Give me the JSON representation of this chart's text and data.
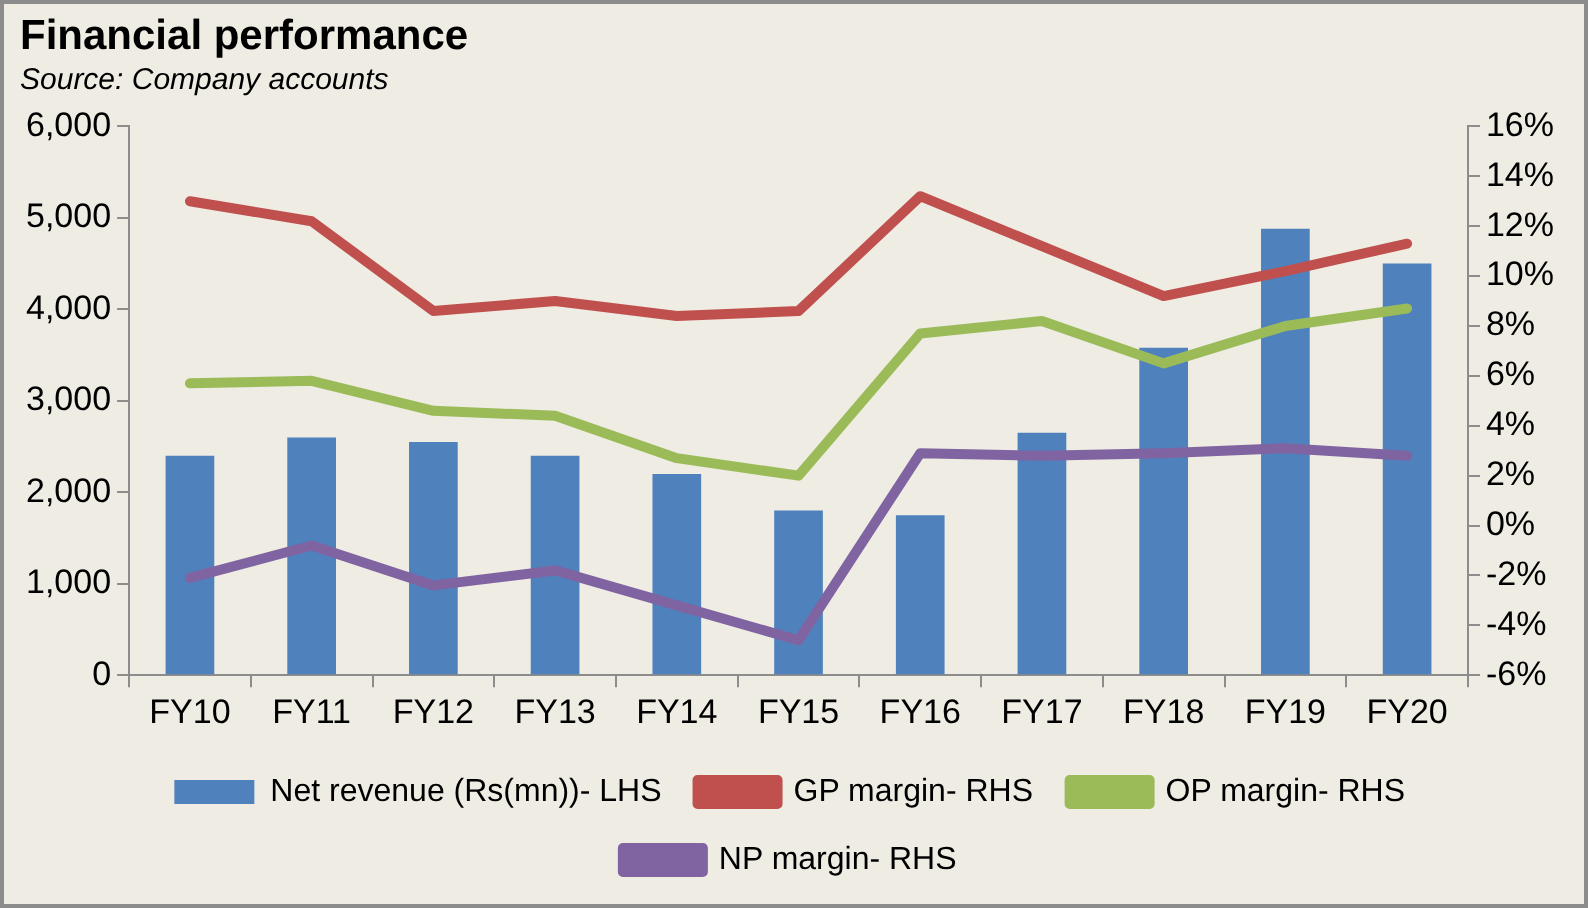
{
  "chart_data": {
    "type": "bar",
    "title": "Financial performance",
    "subtitle": "Source: Company accounts",
    "categories": [
      "FY10",
      "FY11",
      "FY12",
      "FY13",
      "FY14",
      "FY15",
      "FY16",
      "FY17",
      "FY18",
      "FY19",
      "FY20"
    ],
    "series": [
      {
        "name": "Net revenue (Rs(mn))- LHS",
        "color": "#4f81bd",
        "values": [
          2400,
          2600,
          2550,
          2400,
          2200,
          1800,
          1750,
          2650,
          3580,
          4880,
          4500
        ]
      },
      {
        "name": "GP margin- RHS",
        "type": "line",
        "axis": "y2",
        "color": "#c0504d",
        "values": [
          13.0,
          12.2,
          8.6,
          9.0,
          8.4,
          8.6,
          13.2,
          11.2,
          9.2,
          10.2,
          11.3
        ]
      },
      {
        "name": "OP margin- RHS",
        "type": "line",
        "axis": "y2",
        "color": "#9bbb59",
        "values": [
          5.7,
          5.8,
          4.6,
          4.4,
          2.7,
          2.0,
          7.7,
          8.2,
          6.5,
          8.0,
          8.7
        ]
      },
      {
        "name": "NP margin- RHS",
        "type": "line",
        "axis": "y2",
        "color": "#8064a2",
        "values": [
          -2.1,
          -0.8,
          -2.4,
          -1.8,
          -3.2,
          -4.6,
          2.9,
          2.8,
          2.9,
          3.1,
          2.8
        ]
      }
    ],
    "ylim": [
      0,
      6000
    ],
    "yticks": [
      0,
      {
        "value": 1000,
        "label": "1,000"
      },
      {
        "value": 2000,
        "label": "2,000"
      },
      {
        "value": 3000,
        "label": "3,000"
      },
      {
        "value": 4000,
        "label": "4,000"
      },
      {
        "value": 5000,
        "label": "5,000"
      },
      {
        "value": 6000,
        "label": "6,000"
      }
    ],
    "y2lim": [
      -6,
      16
    ],
    "y2ticks": [
      {
        "value": -6,
        "label": "-6%"
      },
      {
        "value": -4,
        "label": "-4%"
      },
      {
        "value": -2,
        "label": "-2%"
      },
      {
        "value": 0,
        "label": "0%"
      },
      {
        "value": 2,
        "label": "2%"
      },
      {
        "value": 4,
        "label": "4%"
      },
      {
        "value": 6,
        "label": "6%"
      },
      {
        "value": 8,
        "label": "8%"
      },
      {
        "value": 10,
        "label": "10%"
      },
      {
        "value": 12,
        "label": "12%"
      },
      {
        "value": 14,
        "label": "14%"
      },
      {
        "value": 16,
        "label": "16%"
      }
    ],
    "grid": false,
    "legend": "bottom",
    "marker": "none",
    "line_style": "solid"
  }
}
